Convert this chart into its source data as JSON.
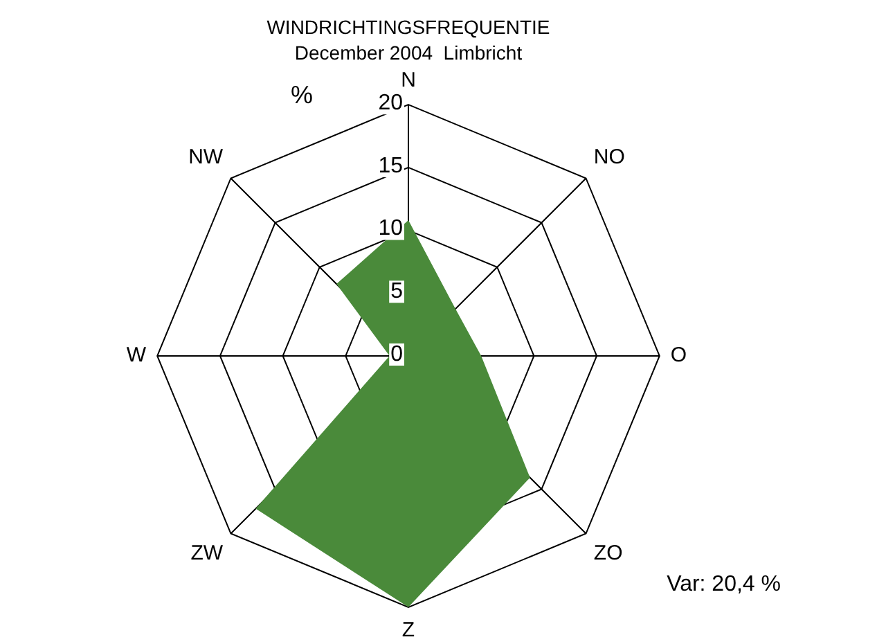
{
  "chart_data": {
    "type": "radar",
    "title": "WINDRICHTINGSFREQUENTIE",
    "subtitle": "December 2004  Limbricht",
    "ylabel": "%",
    "categories": [
      "N",
      "NO",
      "O",
      "ZO",
      "Z",
      "ZW",
      "W",
      "NW"
    ],
    "series": [
      {
        "color": "#4a8a3a",
        "values": [
          10.8,
          5.3,
          5.8,
          13.7,
          20,
          17.2,
          1.5,
          8.1
        ]
      }
    ],
    "ylim": [
      0,
      20
    ],
    "yticks": [
      0,
      5,
      10,
      15,
      20
    ],
    "grid": true,
    "legend": false,
    "marker": "none",
    "annotations": [
      "Var: 20,4 %"
    ]
  }
}
